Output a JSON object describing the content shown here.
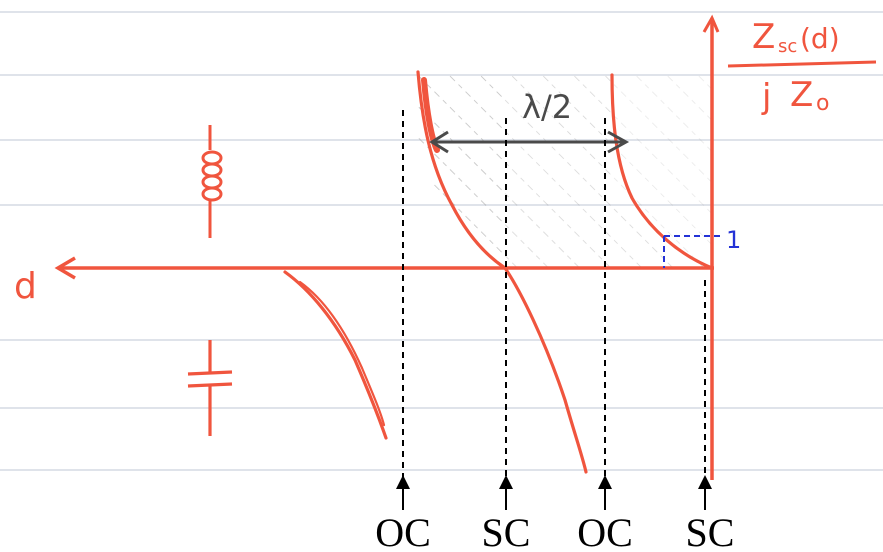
{
  "axis": {
    "d_label": "d"
  },
  "title": {
    "numerator": "Zsc (d)",
    "numerator_main": "Z",
    "numerator_sub": "sc",
    "numerator_arg": "(d)",
    "denominator": "jZ₀",
    "denominator_j": "j",
    "denominator_z": "Z",
    "denominator_sub": "o"
  },
  "span_label": "λ/2",
  "slope_label": "1",
  "markers": [
    {
      "label": "OC"
    },
    {
      "label": "SC"
    },
    {
      "label": "OC"
    },
    {
      "label": "SC"
    }
  ],
  "symbols": {
    "inductor": "inductor-symbol",
    "capacitor": "capacitor-symbol"
  },
  "colors": {
    "ink_red": "#f0553e",
    "arrow_gray": "#4a4a4a",
    "dash_blue": "#2432d6",
    "paper_rule": "#dfe3ea",
    "marker_black": "#000000"
  }
}
